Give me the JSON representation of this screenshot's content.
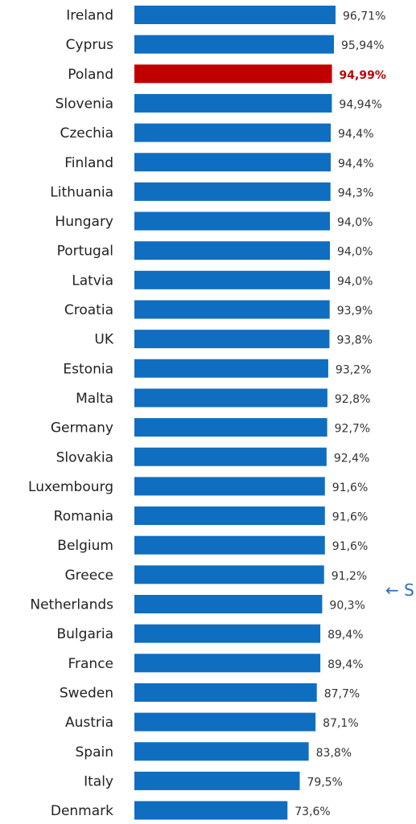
{
  "chart_data": {
    "type": "bar",
    "orientation": "horizontal",
    "title": "",
    "xlabel": "",
    "ylabel": "",
    "categories": [
      "Ireland",
      "Cyprus",
      "Poland",
      "Slovenia",
      "Czechia",
      "Finland",
      "Lithuania",
      "Hungary",
      "Portugal",
      "Latvia",
      "Croatia",
      "UK",
      "Estonia",
      "Malta",
      "Germany",
      "Slovakia",
      "Luxembourg",
      "Romania",
      "Belgium",
      "Greece",
      "Netherlands",
      "Bulgaria",
      "France",
      "Sweden",
      "Austria",
      "Spain",
      "Italy",
      "Denmark"
    ],
    "values": [
      96.71,
      95.94,
      94.99,
      94.94,
      94.4,
      94.4,
      94.3,
      94.0,
      94.0,
      94.0,
      93.9,
      93.8,
      93.2,
      92.8,
      92.7,
      92.4,
      91.6,
      91.6,
      91.6,
      91.2,
      90.3,
      89.4,
      89.4,
      87.7,
      87.1,
      83.8,
      79.5,
      73.6
    ],
    "value_labels": [
      "96,71%",
      "95,94%",
      "94,99%",
      "94,94%",
      "94,4%",
      "94,4%",
      "94,3%",
      "94,0%",
      "94,0%",
      "94,0%",
      "93,9%",
      "93,8%",
      "93,2%",
      "92,8%",
      "92,7%",
      "92,4%",
      "91,6%",
      "91,6%",
      "91,6%",
      "91,2%",
      "90,3%",
      "89,4%",
      "89,4%",
      "87,7%",
      "87,1%",
      "83,8%",
      "79,5%",
      "73,6%"
    ],
    "highlight": "Poland",
    "colors": {
      "bar": "#0f6ec0",
      "highlight": "#c00000",
      "highlight_label": "#c00000"
    },
    "grid": false,
    "legend": "none"
  },
  "annotation": {
    "arrow": "←",
    "text": "S"
  }
}
